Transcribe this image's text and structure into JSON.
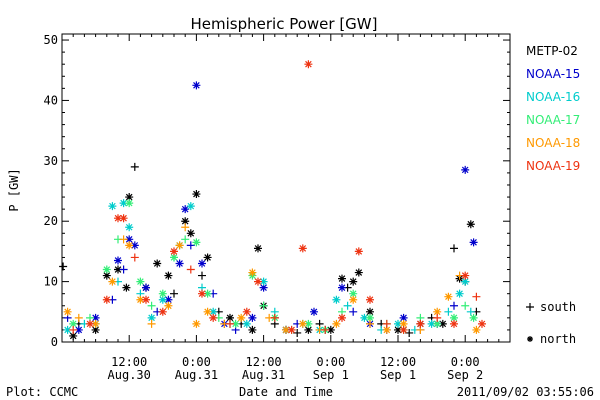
{
  "chart_data": {
    "type": "scatter",
    "title": "Hemispheric Power [GW]",
    "ylabel": "P [GW]",
    "xlabel": "Date and Time",
    "ylim": [
      0,
      51
    ],
    "yticks": [
      0,
      10,
      20,
      30,
      40,
      50
    ],
    "xlim": [
      0,
      80
    ],
    "xticks": [
      {
        "x": 12,
        "line1": "12:00",
        "line2": "Aug.30"
      },
      {
        "x": 24,
        "line1": "0:00",
        "line2": "Aug.31"
      },
      {
        "x": 36,
        "line1": "12:00",
        "line2": "Aug.31"
      },
      {
        "x": 48,
        "line1": "0:00",
        "line2": "Sep 1"
      },
      {
        "x": 60,
        "line1": "12:00",
        "line2": "Sep 1"
      },
      {
        "x": 72,
        "line1": "0:00",
        "line2": "Sep 2"
      }
    ],
    "x_unit": "hours since 2011-08-29 12:00",
    "series": [
      {
        "name": "METP-02",
        "color": "#000000",
        "points": [
          [
            0.2,
            12.5,
            "s"
          ],
          [
            2,
            1,
            "n"
          ],
          [
            3,
            3,
            "s"
          ],
          [
            6,
            2,
            "n"
          ],
          [
            8,
            11,
            "n"
          ],
          [
            10,
            12,
            "n"
          ],
          [
            11.5,
            9,
            "n"
          ],
          [
            12,
            24,
            "n"
          ],
          [
            13,
            29,
            "s"
          ],
          [
            15,
            9,
            "n"
          ],
          [
            17,
            13,
            "n"
          ],
          [
            19,
            11,
            "n"
          ],
          [
            20,
            8,
            "s"
          ],
          [
            22,
            20,
            "n"
          ],
          [
            23,
            18,
            "n"
          ],
          [
            24,
            24.5,
            "n"
          ],
          [
            25,
            11,
            "s"
          ],
          [
            26,
            14,
            "n"
          ],
          [
            28,
            5,
            "s"
          ],
          [
            30,
            4,
            "n"
          ],
          [
            32,
            3,
            "s"
          ],
          [
            34,
            2,
            "n"
          ],
          [
            35,
            15.5,
            "n"
          ],
          [
            36,
            6,
            "n"
          ],
          [
            38,
            3,
            "s"
          ],
          [
            40,
            2,
            "n"
          ],
          [
            42,
            1.5,
            "s"
          ],
          [
            44,
            2,
            "n"
          ],
          [
            46,
            3,
            "s"
          ],
          [
            48,
            2,
            "n"
          ],
          [
            50,
            10.5,
            "n"
          ],
          [
            51,
            9,
            "s"
          ],
          [
            52,
            10,
            "n"
          ],
          [
            53,
            11.5,
            "n"
          ],
          [
            55,
            5,
            "n"
          ],
          [
            57,
            3,
            "s"
          ],
          [
            60,
            2,
            "n"
          ],
          [
            62,
            1.5,
            "s"
          ],
          [
            64,
            3,
            "n"
          ],
          [
            66,
            4,
            "s"
          ],
          [
            68,
            3,
            "n"
          ],
          [
            70,
            15.5,
            "s"
          ],
          [
            71,
            10.5,
            "n"
          ],
          [
            72,
            10,
            "s"
          ],
          [
            73,
            19.5,
            "n"
          ],
          [
            74,
            5,
            "s"
          ]
        ]
      },
      {
        "name": "NOAA-15",
        "color": "#0000cc",
        "points": [
          [
            1,
            4,
            "s"
          ],
          [
            3,
            2,
            "n"
          ],
          [
            6,
            4,
            "n"
          ],
          [
            9,
            7,
            "s"
          ],
          [
            10,
            13.5,
            "n"
          ],
          [
            11,
            12,
            "s"
          ],
          [
            12,
            17,
            "n"
          ],
          [
            13,
            16,
            "n"
          ],
          [
            15,
            9,
            "n"
          ],
          [
            17,
            5,
            "s"
          ],
          [
            19,
            7,
            "n"
          ],
          [
            21,
            13,
            "n"
          ],
          [
            22,
            22,
            "n"
          ],
          [
            23,
            16,
            "s"
          ],
          [
            24,
            42.5,
            "n"
          ],
          [
            25,
            13,
            "n"
          ],
          [
            27,
            8,
            "s"
          ],
          [
            29,
            3,
            "n"
          ],
          [
            31,
            2,
            "s"
          ],
          [
            34,
            4,
            "n"
          ],
          [
            36,
            9,
            "n"
          ],
          [
            38,
            4,
            "s"
          ],
          [
            40,
            2,
            "n"
          ],
          [
            42,
            3,
            "s"
          ],
          [
            45,
            5,
            "n"
          ],
          [
            47,
            2,
            "s"
          ],
          [
            50,
            9,
            "n"
          ],
          [
            52,
            5,
            "s"
          ],
          [
            55,
            3,
            "n"
          ],
          [
            58,
            2,
            "s"
          ],
          [
            61,
            4,
            "n"
          ],
          [
            64,
            2,
            "s"
          ],
          [
            67,
            3,
            "n"
          ],
          [
            70,
            6,
            "s"
          ],
          [
            72,
            28.5,
            "n"
          ],
          [
            73.5,
            16.5,
            "n"
          ]
        ]
      },
      {
        "name": "NOAA-16",
        "color": "#00cccc",
        "points": [
          [
            1,
            2,
            "n"
          ],
          [
            4,
            3,
            "s"
          ],
          [
            6,
            3,
            "n"
          ],
          [
            9,
            22.5,
            "n"
          ],
          [
            10,
            10,
            "s"
          ],
          [
            11,
            23,
            "n"
          ],
          [
            12,
            19,
            "n"
          ],
          [
            14,
            8,
            "s"
          ],
          [
            16,
            4,
            "n"
          ],
          [
            18,
            7,
            "n"
          ],
          [
            20,
            14,
            "s"
          ],
          [
            21,
            16,
            "n"
          ],
          [
            23,
            22.5,
            "n"
          ],
          [
            25,
            9,
            "s"
          ],
          [
            27,
            5,
            "n"
          ],
          [
            30,
            3,
            "s"
          ],
          [
            33,
            3,
            "n"
          ],
          [
            36,
            10,
            "n"
          ],
          [
            38,
            5,
            "s"
          ],
          [
            40,
            2,
            "n"
          ],
          [
            43,
            3,
            "s"
          ],
          [
            46,
            2,
            "n"
          ],
          [
            49,
            7,
            "n"
          ],
          [
            51,
            6,
            "s"
          ],
          [
            54,
            4,
            "n"
          ],
          [
            57,
            2,
            "s"
          ],
          [
            60,
            3,
            "n"
          ],
          [
            63,
            2,
            "s"
          ],
          [
            66,
            3,
            "n"
          ],
          [
            69,
            5,
            "s"
          ],
          [
            71,
            8,
            "n"
          ],
          [
            72,
            10,
            "n"
          ],
          [
            73,
            5,
            "s"
          ]
        ]
      },
      {
        "name": "NOAA-17",
        "color": "#33ee77",
        "points": [
          [
            2,
            3,
            "n"
          ],
          [
            5,
            4,
            "s"
          ],
          [
            8,
            12,
            "n"
          ],
          [
            10,
            17,
            "s"
          ],
          [
            12,
            23,
            "n"
          ],
          [
            14,
            10,
            "n"
          ],
          [
            16,
            6,
            "s"
          ],
          [
            18,
            8,
            "n"
          ],
          [
            20,
            14,
            "n"
          ],
          [
            22,
            17,
            "s"
          ],
          [
            24,
            16.5,
            "n"
          ],
          [
            26,
            8,
            "n"
          ],
          [
            28,
            4,
            "s"
          ],
          [
            31,
            3,
            "n"
          ],
          [
            34,
            11,
            "n"
          ],
          [
            36,
            6,
            "s"
          ],
          [
            38,
            4,
            "n"
          ],
          [
            41,
            2,
            "s"
          ],
          [
            44,
            3,
            "n"
          ],
          [
            47,
            2,
            "n"
          ],
          [
            50,
            5,
            "s"
          ],
          [
            52,
            8,
            "n"
          ],
          [
            55,
            4,
            "n"
          ],
          [
            58,
            3,
            "s"
          ],
          [
            61,
            2,
            "n"
          ],
          [
            64,
            4,
            "s"
          ],
          [
            67,
            3,
            "n"
          ],
          [
            70,
            4,
            "n"
          ],
          [
            72,
            6,
            "s"
          ],
          [
            73.5,
            4,
            "n"
          ]
        ]
      },
      {
        "name": "NOAA-18",
        "color": "#ff9900",
        "points": [
          [
            1,
            5,
            "n"
          ],
          [
            3,
            4,
            "s"
          ],
          [
            6,
            3,
            "n"
          ],
          [
            9,
            10,
            "n"
          ],
          [
            11,
            17,
            "s"
          ],
          [
            12,
            16,
            "n"
          ],
          [
            14,
            7,
            "n"
          ],
          [
            16,
            3,
            "s"
          ],
          [
            19,
            6,
            "n"
          ],
          [
            21,
            16,
            "n"
          ],
          [
            22,
            19,
            "s"
          ],
          [
            24,
            3,
            "n"
          ],
          [
            26,
            5,
            "n"
          ],
          [
            29,
            3,
            "s"
          ],
          [
            32,
            4,
            "n"
          ],
          [
            34,
            11.5,
            "n"
          ],
          [
            37,
            4,
            "s"
          ],
          [
            40,
            2,
            "n"
          ],
          [
            43,
            3,
            "n"
          ],
          [
            46,
            2,
            "s"
          ],
          [
            49,
            3,
            "n"
          ],
          [
            52,
            7,
            "n"
          ],
          [
            55,
            3,
            "s"
          ],
          [
            58,
            2,
            "n"
          ],
          [
            61,
            3,
            "n"
          ],
          [
            64,
            2,
            "s"
          ],
          [
            67,
            5,
            "n"
          ],
          [
            69,
            7.5,
            "n"
          ],
          [
            71,
            11,
            "s"
          ],
          [
            74,
            2,
            "n"
          ]
        ]
      },
      {
        "name": "NOAA-19",
        "color": "#ee3311",
        "points": [
          [
            2,
            2,
            "s"
          ],
          [
            5,
            3,
            "n"
          ],
          [
            8,
            7,
            "n"
          ],
          [
            10,
            20.5,
            "n"
          ],
          [
            11,
            20.5,
            "n"
          ],
          [
            13,
            14,
            "s"
          ],
          [
            15,
            7,
            "n"
          ],
          [
            18,
            5,
            "n"
          ],
          [
            20,
            15,
            "n"
          ],
          [
            23,
            12,
            "s"
          ],
          [
            25,
            8,
            "n"
          ],
          [
            27,
            4,
            "n"
          ],
          [
            30,
            3,
            "s"
          ],
          [
            33,
            5,
            "n"
          ],
          [
            35,
            10,
            "n"
          ],
          [
            38,
            4,
            "s"
          ],
          [
            41,
            2,
            "n"
          ],
          [
            43,
            15.5,
            "n"
          ],
          [
            44,
            46,
            "n"
          ],
          [
            47,
            2,
            "s"
          ],
          [
            50,
            4,
            "n"
          ],
          [
            53,
            15,
            "n"
          ],
          [
            55,
            7,
            "n"
          ],
          [
            58,
            3,
            "s"
          ],
          [
            61,
            2,
            "n"
          ],
          [
            64,
            3,
            "n"
          ],
          [
            67,
            4,
            "s"
          ],
          [
            70,
            3,
            "n"
          ],
          [
            72,
            11,
            "n"
          ],
          [
            74,
            7.5,
            "s"
          ],
          [
            75,
            3,
            "n"
          ]
        ]
      }
    ],
    "marker_legend": [
      {
        "symbol": "+",
        "label": "south"
      },
      {
        "symbol": "*",
        "label": "north"
      }
    ]
  },
  "footer": {
    "plot_credit": "Plot: CCMC",
    "timestamp": "2011/09/02 03:55:06"
  }
}
